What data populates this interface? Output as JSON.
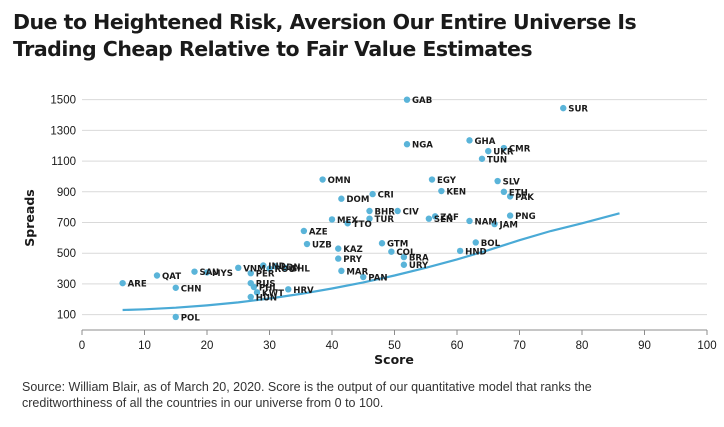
{
  "title_lines": [
    "Due to Heightened Risk, Aversion Our Entire Universe Is",
    "Trading Cheap Relative to Fair Value Estimates"
  ],
  "source_lines": [
    "Source: William Blair, as of March 20, 2020. Score is the output of our quantitative model that ranks the",
    "creditworthiness of all the countries in our universe from 0 to 100."
  ],
  "colors": {
    "points": "#5ab4d9",
    "curve": "#4aaad6",
    "grid": "#d9d9d9",
    "text": "#1a1a1a"
  },
  "chart_data": {
    "type": "scatter",
    "xlabel": "Score",
    "ylabel": "Spreads",
    "xlim": [
      0,
      100
    ],
    "ylim": [
      0,
      1550
    ],
    "xticks": [
      0,
      10,
      20,
      30,
      40,
      50,
      60,
      70,
      80,
      90,
      100
    ],
    "yticks": [
      100,
      300,
      500,
      700,
      900,
      1100,
      1300,
      1500
    ],
    "grid": "horizontal",
    "points": [
      {
        "label": "GAB",
        "x": 52,
        "y": 1500
      },
      {
        "label": "SUR",
        "x": 77,
        "y": 1445
      },
      {
        "label": "GHA",
        "x": 62,
        "y": 1235
      },
      {
        "label": "NGA",
        "x": 52,
        "y": 1210
      },
      {
        "label": "CMR",
        "x": 67.5,
        "y": 1185
      },
      {
        "label": "UKR",
        "x": 65,
        "y": 1165
      },
      {
        "label": "TUN",
        "x": 64,
        "y": 1115
      },
      {
        "label": "OMN",
        "x": 38.5,
        "y": 980
      },
      {
        "label": "EGY",
        "x": 56,
        "y": 980
      },
      {
        "label": "SLV",
        "x": 66.5,
        "y": 970
      },
      {
        "label": "ETH",
        "x": 67.5,
        "y": 900
      },
      {
        "label": "KEN",
        "x": 57.5,
        "y": 905
      },
      {
        "label": "CRI",
        "x": 46.5,
        "y": 885
      },
      {
        "label": "PAK",
        "x": 68.5,
        "y": 870
      },
      {
        "label": "DOM",
        "x": 41.5,
        "y": 855
      },
      {
        "label": "BHR",
        "x": 46,
        "y": 775
      },
      {
        "label": "CIV",
        "x": 50.5,
        "y": 775
      },
      {
        "label": "PNG",
        "x": 68.5,
        "y": 745
      },
      {
        "label": "ZAF",
        "x": 56.5,
        "y": 740
      },
      {
        "label": "TUR",
        "x": 46,
        "y": 725
      },
      {
        "label": "MEX",
        "x": 40,
        "y": 720
      },
      {
        "label": "SEN",
        "x": 55.5,
        "y": 725
      },
      {
        "label": "NAM",
        "x": 62,
        "y": 710
      },
      {
        "label": "JAM",
        "x": 66,
        "y": 690
      },
      {
        "label": "TTO",
        "x": 42.5,
        "y": 695
      },
      {
        "label": "AZE",
        "x": 35.5,
        "y": 645
      },
      {
        "label": "GTM",
        "x": 48,
        "y": 565
      },
      {
        "label": "UZB",
        "x": 36,
        "y": 560
      },
      {
        "label": "BOL",
        "x": 63,
        "y": 570
      },
      {
        "label": "KAZ",
        "x": 41,
        "y": 530
      },
      {
        "label": "COL",
        "x": 49.5,
        "y": 510
      },
      {
        "label": "HND",
        "x": 60.5,
        "y": 515
      },
      {
        "label": "BRA",
        "x": 51.5,
        "y": 475
      },
      {
        "label": "PRY",
        "x": 41,
        "y": 465
      },
      {
        "label": "URY",
        "x": 51.5,
        "y": 425
      },
      {
        "label": "VNM",
        "x": 25,
        "y": 405
      },
      {
        "label": "IND",
        "x": 29,
        "y": 420
      },
      {
        "label": "LDN",
        "x": 31,
        "y": 415
      },
      {
        "label": "SAU",
        "x": 18,
        "y": 380
      },
      {
        "label": "MYS",
        "x": 20,
        "y": 375
      },
      {
        "label": "MAR",
        "x": 41.5,
        "y": 385
      },
      {
        "label": "GHL",
        "x": 32.5,
        "y": 405
      },
      {
        "label": "ROU",
        "x": 30,
        "y": 400
      },
      {
        "label": "PER",
        "x": 27,
        "y": 370
      },
      {
        "label": "QAT",
        "x": 12,
        "y": 355
      },
      {
        "label": "PAN",
        "x": 45,
        "y": 345
      },
      {
        "label": "RUS",
        "x": 27,
        "y": 305
      },
      {
        "label": "ARE",
        "x": 6.5,
        "y": 305
      },
      {
        "label": "CHN",
        "x": 15,
        "y": 275
      },
      {
        "label": "PHL",
        "x": 27.5,
        "y": 280
      },
      {
        "label": "HRV",
        "x": 33,
        "y": 265
      },
      {
        "label": "KWT",
        "x": 28,
        "y": 245
      },
      {
        "label": "HUN",
        "x": 27,
        "y": 215
      },
      {
        "label": "POL",
        "x": 15,
        "y": 85
      }
    ],
    "fair_value_curve": [
      {
        "x": 6.5,
        "y": 130
      },
      {
        "x": 10,
        "y": 135
      },
      {
        "x": 15,
        "y": 145
      },
      {
        "x": 20,
        "y": 160
      },
      {
        "x": 25,
        "y": 180
      },
      {
        "x": 30,
        "y": 205
      },
      {
        "x": 35,
        "y": 235
      },
      {
        "x": 40,
        "y": 270
      },
      {
        "x": 45,
        "y": 310
      },
      {
        "x": 50,
        "y": 355
      },
      {
        "x": 55,
        "y": 405
      },
      {
        "x": 60,
        "y": 460
      },
      {
        "x": 65,
        "y": 520
      },
      {
        "x": 70,
        "y": 585
      },
      {
        "x": 75,
        "y": 645
      },
      {
        "x": 80,
        "y": 695
      },
      {
        "x": 86,
        "y": 760
      }
    ]
  }
}
